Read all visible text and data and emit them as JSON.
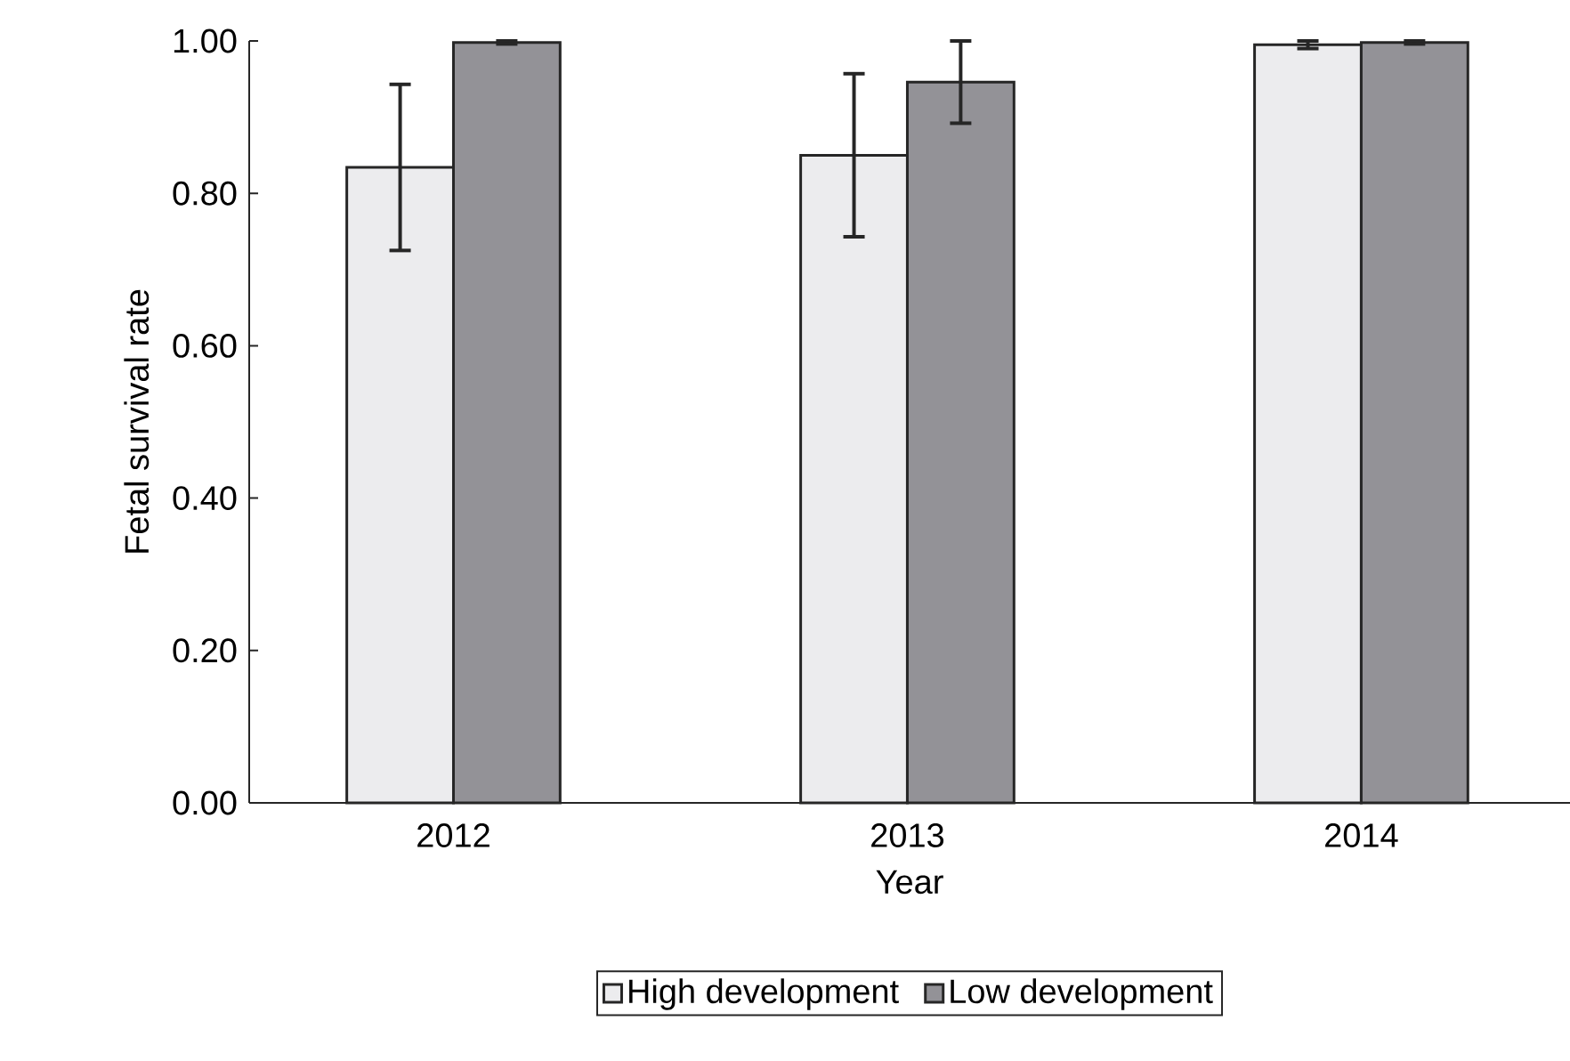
{
  "chart_data": {
    "type": "bar",
    "xlabel": "Year",
    "ylabel": "Fetal survival rate",
    "categories": [
      "2012",
      "2013",
      "2014"
    ],
    "series": [
      {
        "name": "High development",
        "color": "#ececee",
        "values": [
          0.834,
          0.85,
          0.995
        ],
        "errors": [
          0.109,
          0.107,
          0.005
        ]
      },
      {
        "name": "Low development",
        "color": "#939297",
        "values": [
          0.998,
          0.946,
          0.998
        ],
        "errors": [
          0.002,
          0.054,
          0.002
        ]
      }
    ],
    "ylim": [
      0,
      1.0
    ],
    "yticks": [
      {
        "value": 0,
        "label": "0.00"
      },
      {
        "value": 0.2,
        "label": "0.20"
      },
      {
        "value": 0.4,
        "label": "0.40"
      },
      {
        "value": 0.6,
        "label": "0.60"
      },
      {
        "value": 0.8,
        "label": "0.80"
      },
      {
        "value": 1.0,
        "label": "1.00"
      }
    ],
    "legend": "bottom"
  }
}
